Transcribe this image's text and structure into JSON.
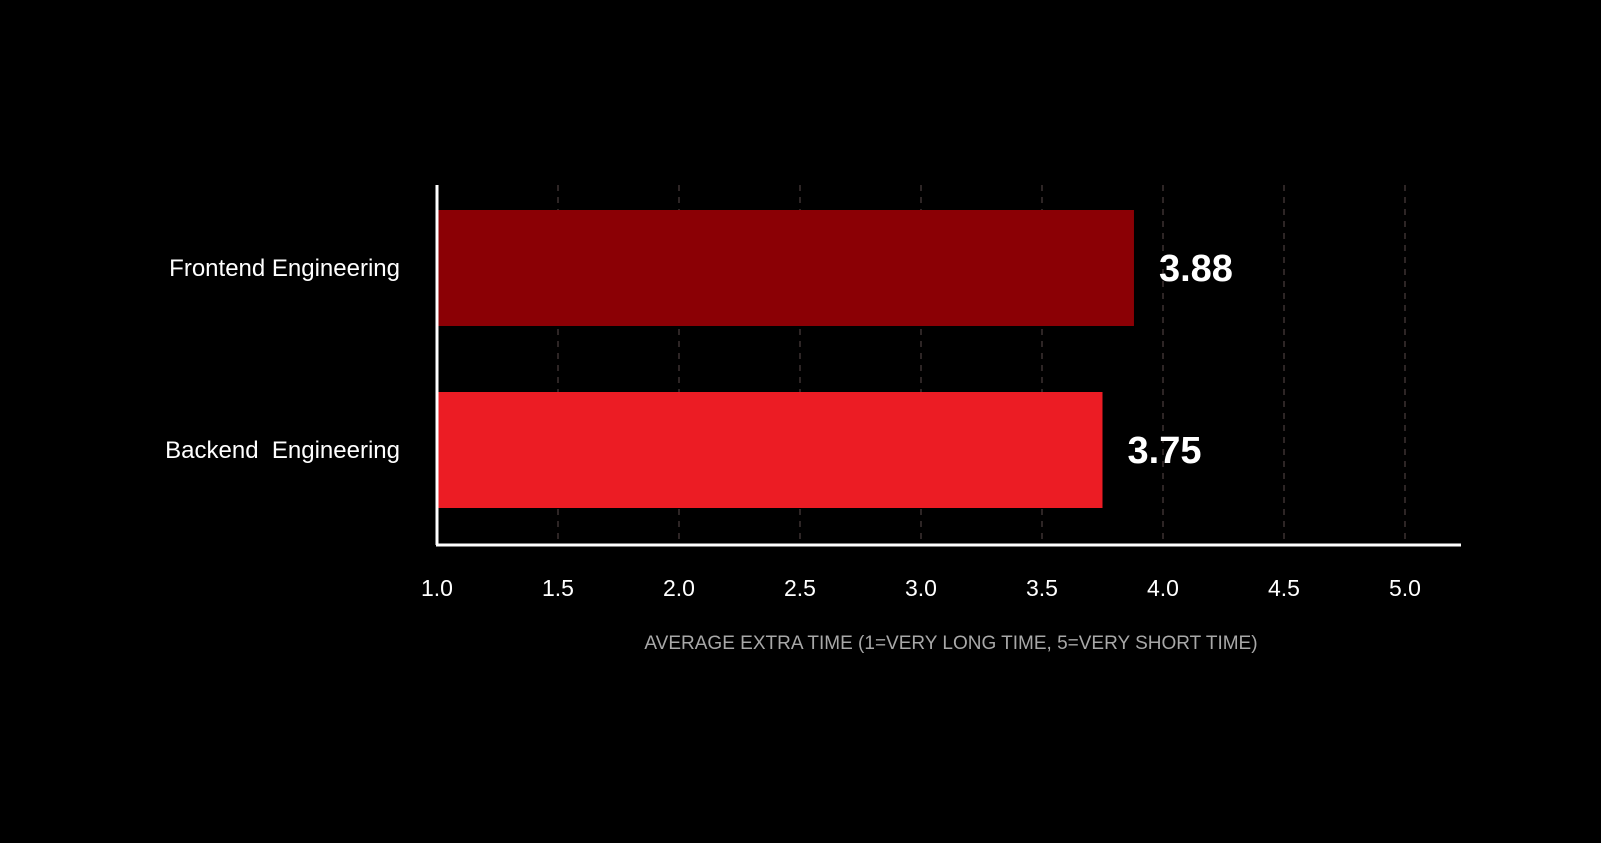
{
  "chart_data": {
    "type": "bar",
    "orientation": "horizontal",
    "categories": [
      "Frontend Engineering",
      "Backend  Engineering"
    ],
    "values": [
      3.88,
      3.75
    ],
    "value_labels": [
      "3.88",
      "3.75"
    ],
    "bar_colors": [
      "#8B0005",
      "#EC1C24"
    ],
    "xlabel": "AVERAGE EXTRA TIME (1=VERY LONG TIME, 5=VERY SHORT TIME)",
    "ylabel": "",
    "xlim": [
      1.0,
      5.0
    ],
    "xticks": [
      1.0,
      1.5,
      2.0,
      2.5,
      3.0,
      3.5,
      4.0,
      4.5,
      5.0
    ],
    "xtick_labels": [
      "1.0",
      "1.5",
      "2.0",
      "2.5",
      "3.0",
      "3.5",
      "4.0",
      "4.5",
      "5.0"
    ],
    "grid": "vertical dashed",
    "legend": "none"
  },
  "colors": {
    "background": "#000000",
    "axis": "#FFFFFF",
    "grid": "#5A4A4A",
    "category_label": "#FFFFFF",
    "tick_label": "#FFFFFF",
    "axis_title": "#A8A8A8",
    "value_label": "#FFFFFF"
  }
}
